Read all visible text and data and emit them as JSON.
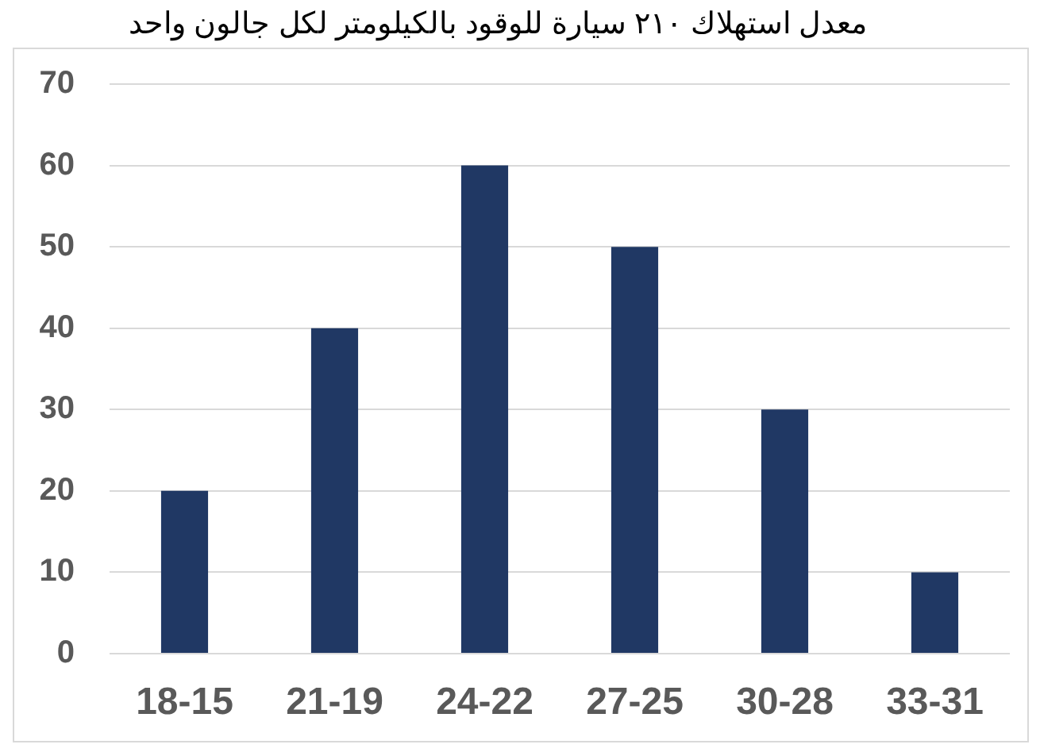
{
  "chart_data": {
    "type": "bar",
    "title": "معدل استهلاك ٢١٠ سيارة للوقود بالكيلومتر لكل جالون واحد",
    "categories": [
      "18-15",
      "21-19",
      "24-22",
      "27-25",
      "30-28",
      "33-31"
    ],
    "values": [
      20,
      40,
      60,
      50,
      30,
      10
    ],
    "color": "#203864",
    "ylim": [
      0,
      70
    ],
    "yticks": [
      0,
      10,
      20,
      30,
      40,
      50,
      60,
      70
    ],
    "grid": "y"
  }
}
